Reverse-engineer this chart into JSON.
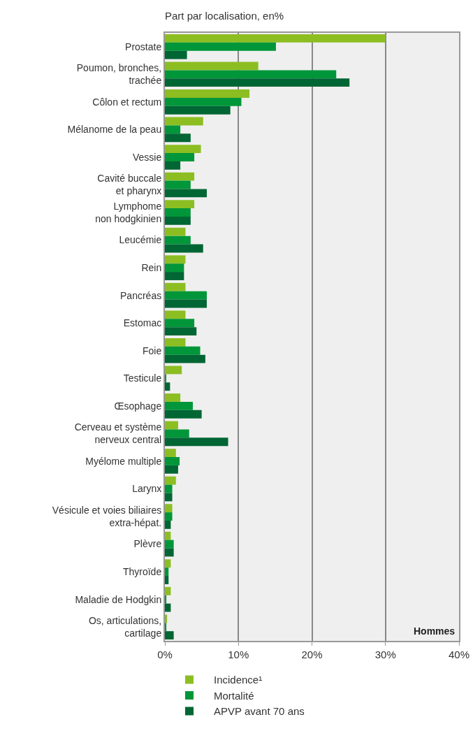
{
  "chart_data": {
    "type": "bar",
    "orientation": "horizontal",
    "title": "Part par localisation, en%",
    "categories": [
      "Prostate",
      "Poumon, bronches,\ntrachée",
      "Côlon et rectum",
      "Mélanome de la peau",
      "Vessie",
      "Cavité buccale\net pharynx",
      "Lymphome\nnon hodgkinien",
      "Leucémie",
      "Rein",
      "Pancréas",
      "Estomac",
      "Foie",
      "Testicule",
      "Œsophage",
      "Cerveau et système\nnerveux central",
      "Myélome multiple",
      "Larynx",
      "Vésicule et voies biliaires\nextra-hépat.",
      "Plèvre",
      "Thyroïde",
      "Maladie de Hodgkin",
      "Os, articulations,\ncartilage"
    ],
    "series": [
      {
        "name": "Incidence¹",
        "color": "#8cbe22",
        "values": [
          30,
          12.7,
          11.5,
          5.2,
          4.9,
          4.0,
          4.0,
          2.8,
          2.8,
          2.8,
          2.8,
          2.8,
          2.3,
          2.1,
          1.8,
          1.5,
          1.5,
          1.0,
          0.8,
          0.8,
          0.8,
          0.3
        ]
      },
      {
        "name": "Mortalité",
        "color": "#009639",
        "values": [
          15.1,
          23.3,
          10.4,
          2.1,
          4.0,
          3.5,
          3.5,
          3.5,
          2.6,
          5.7,
          4.0,
          4.8,
          0.1,
          3.8,
          3.3,
          2.0,
          1.0,
          1.0,
          1.2,
          0.5,
          0.2,
          0.2
        ]
      },
      {
        "name": "APVP avant 70 ans",
        "color": "#006633",
        "values": [
          3.0,
          25.1,
          8.9,
          3.5,
          2.1,
          5.7,
          3.5,
          5.2,
          2.6,
          5.7,
          4.3,
          5.5,
          0.7,
          5.0,
          8.6,
          1.8,
          1.0,
          0.8,
          1.2,
          0.5,
          0.8,
          1.2
        ]
      }
    ],
    "xlim": [
      0,
      40
    ],
    "xticks": [
      {
        "value": 0,
        "label": "0%"
      },
      {
        "value": 10,
        "label": "10%"
      },
      {
        "value": 20,
        "label": "20%"
      },
      {
        "value": 30,
        "label": "30%"
      },
      {
        "value": 40,
        "label": "40%"
      }
    ],
    "grid": "x",
    "legend": "bottom",
    "annotations": [
      "Hommes"
    ]
  }
}
